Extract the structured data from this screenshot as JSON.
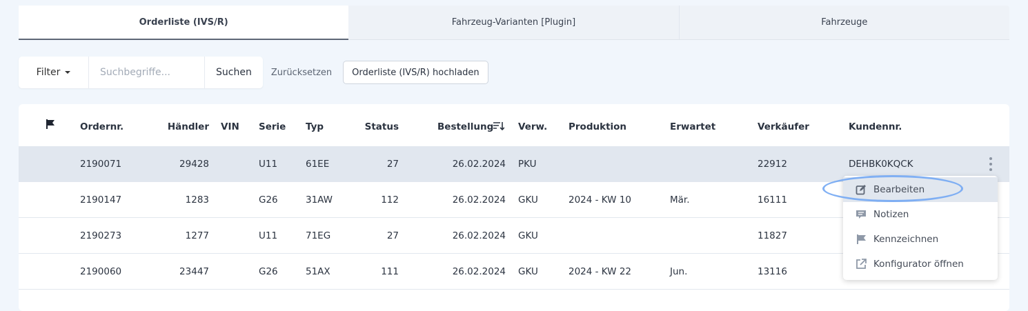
{
  "tabs": [
    {
      "label": "Orderliste (IVS/R)",
      "active": true
    },
    {
      "label": "Fahrzeug-Varianten [Plugin]"
    },
    {
      "label": "Fahrzeuge"
    }
  ],
  "toolbar": {
    "filter": "Filter",
    "search_placeholder": "Suchbegriffe...",
    "search": "Suchen",
    "reset": "Zurücksetzen",
    "upload": "Orderliste (IVS/R) hochladen"
  },
  "table": {
    "headers": {
      "order": "Ordernr.",
      "dealer": "Händler",
      "vin": "VIN",
      "series": "Serie",
      "type": "Typ",
      "status": "Status",
      "ordered": "Bestellung",
      "use": "Verw.",
      "production": "Produktion",
      "expected": "Erwartet",
      "seller": "Verkäufer",
      "customer": "Kundennr."
    },
    "rows": [
      {
        "order": "2190071",
        "dealer": "29428",
        "vin": "",
        "series": "U11",
        "type": "61EE",
        "status": "27",
        "ordered": "26.02.2024",
        "use": "PKU",
        "production": "",
        "expected": "",
        "seller": "22912",
        "customer": "DEHBK0KQCK"
      },
      {
        "order": "2190147",
        "dealer": "1283",
        "vin": "",
        "series": "G26",
        "type": "31AW",
        "status": "112",
        "ordered": "26.02.2024",
        "use": "GKU",
        "production": "2024 - KW 10",
        "expected": "Mär.",
        "seller": "16111",
        "customer": ""
      },
      {
        "order": "2190273",
        "dealer": "1277",
        "vin": "",
        "series": "U11",
        "type": "71EG",
        "status": "27",
        "ordered": "26.02.2024",
        "use": "GKU",
        "production": "",
        "expected": "",
        "seller": "11827",
        "customer": ""
      },
      {
        "order": "2190060",
        "dealer": "23447",
        "vin": "",
        "series": "G26",
        "type": "51AX",
        "status": "111",
        "ordered": "26.02.2024",
        "use": "GKU",
        "production": "2024 - KW 22",
        "expected": "Jun.",
        "seller": "13116",
        "customer": ""
      }
    ]
  },
  "menu": {
    "items": [
      {
        "label": "Bearbeiten",
        "icon": "edit-icon"
      },
      {
        "label": "Notizen",
        "icon": "comment-icon"
      },
      {
        "label": "Kennzeichnen",
        "icon": "flag-icon"
      },
      {
        "label": "Konfigurator öffnen",
        "icon": "external-link-icon"
      }
    ]
  },
  "colors": {
    "highlight": "#73a7f3",
    "selected_row": "#e1e7ef"
  }
}
